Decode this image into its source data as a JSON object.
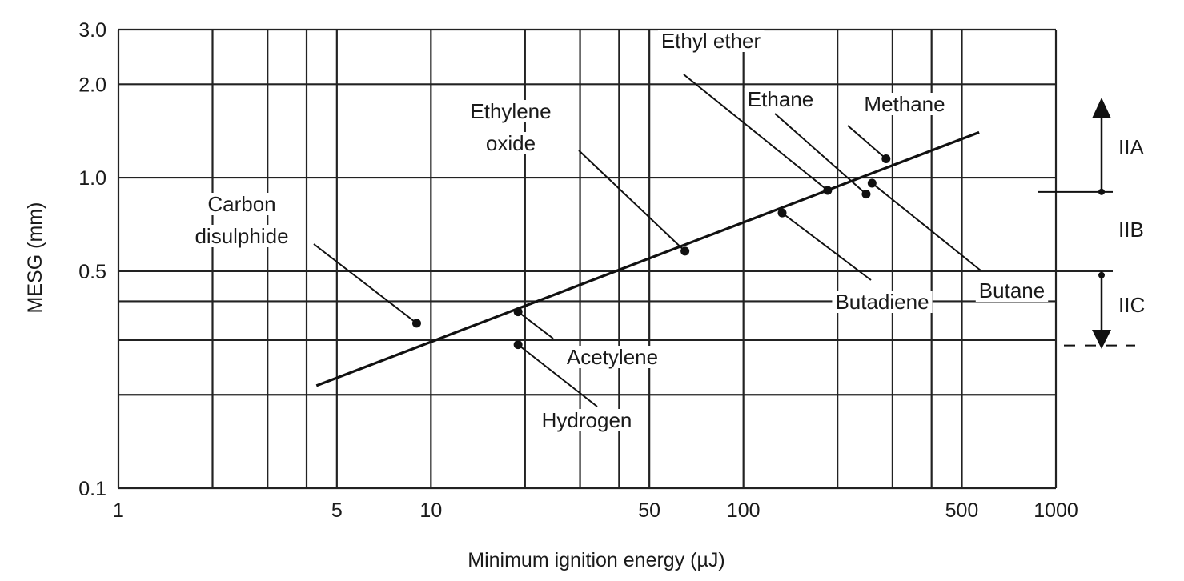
{
  "chart_data": {
    "type": "scatter",
    "title": "",
    "xlabel": "Minimum ignition energy (µJ)",
    "ylabel": "MESG (mm)",
    "xscale": "log",
    "yscale": "log",
    "xlim": [
      1,
      1000
    ],
    "ylim": [
      0.1,
      3.0
    ],
    "grid": true,
    "x_gridlines": [
      1,
      2,
      3,
      4,
      5,
      10,
      20,
      30,
      40,
      50,
      100,
      200,
      300,
      400,
      500,
      1000
    ],
    "y_gridlines": [
      0.1,
      0.2,
      0.3,
      0.4,
      0.5,
      1.0,
      2.0,
      3.0
    ],
    "x_ticks": [
      {
        "value": 1,
        "label": "1"
      },
      {
        "value": 5,
        "label": "5"
      },
      {
        "value": 10,
        "label": "10"
      },
      {
        "value": 50,
        "label": "50"
      },
      {
        "value": 100,
        "label": "100"
      },
      {
        "value": 500,
        "label": "500"
      },
      {
        "value": 1000,
        "label": "1000"
      }
    ],
    "y_ticks": [
      {
        "value": 0.1,
        "label": "0.1"
      },
      {
        "value": 0.5,
        "label": "0.5"
      },
      {
        "value": 1.0,
        "label": "1.0"
      },
      {
        "value": 2.0,
        "label": "2.0"
      },
      {
        "value": 3.0,
        "label": "3.0"
      }
    ],
    "points": [
      {
        "name": "Carbon disulphide",
        "label_lines": [
          "Carbon",
          "disulphide"
        ],
        "x": 9,
        "y": 0.34
      },
      {
        "name": "Acetylene",
        "label_lines": [
          "Acetylene"
        ],
        "x": 19,
        "y": 0.37
      },
      {
        "name": "Hydrogen",
        "label_lines": [
          "Hydrogen"
        ],
        "x": 19,
        "y": 0.29
      },
      {
        "name": "Ethylene oxide",
        "label_lines": [
          "Ethylene",
          "oxide"
        ],
        "x": 65,
        "y": 0.58
      },
      {
        "name": "Butadiene",
        "label_lines": [
          "Butadiene"
        ],
        "x": 133,
        "y": 0.77
      },
      {
        "name": "Ethyl ether",
        "label_lines": [
          "Ethyl ether"
        ],
        "x": 186,
        "y": 0.91
      },
      {
        "name": "Ethane",
        "label_lines": [
          "Ethane"
        ],
        "x": 247,
        "y": 0.885
      },
      {
        "name": "Butane",
        "label_lines": [
          "Butane"
        ],
        "x": 258,
        "y": 0.96
      },
      {
        "name": "Methane",
        "label_lines": [
          "Methane"
        ],
        "x": 286,
        "y": 1.15
      }
    ],
    "trend_line": {
      "x": [
        4.3,
        568
      ],
      "y": [
        0.214,
        1.4
      ]
    },
    "groups": [
      {
        "label": "IIA",
        "range": [
          0.9,
          null
        ]
      },
      {
        "label": "IIB",
        "range": [
          0.5,
          0.9
        ]
      },
      {
        "label": "IIC",
        "range": [
          0.29,
          0.5
        ]
      }
    ]
  }
}
